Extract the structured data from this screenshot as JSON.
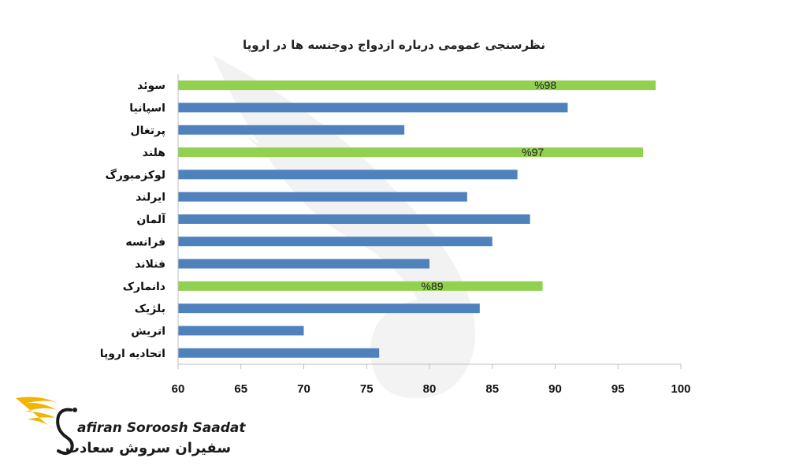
{
  "chart_data": {
    "type": "bar",
    "orientation": "horizontal",
    "title": "نظرسنجی عمومی درباره ازدواج دوجنسه ها در اروپا",
    "categories": [
      "سوئد",
      "اسپانیا",
      "پرتغال",
      "هلند",
      "لوکزمبورگ",
      "ایرلند",
      "آلمان",
      "فرانسه",
      "فنلاند",
      "دانمارک",
      "بلژیک",
      "اتریش",
      "اتحادیه اروپا"
    ],
    "values": [
      98,
      91,
      78,
      97,
      87,
      83,
      88,
      85,
      80,
      89,
      84,
      70,
      76
    ],
    "highlighted": [
      true,
      false,
      false,
      true,
      false,
      false,
      false,
      false,
      false,
      true,
      false,
      false,
      false
    ],
    "data_labels": [
      "%98",
      "",
      "",
      "%97",
      "",
      "",
      "",
      "",
      "",
      "%89",
      "",
      "",
      ""
    ],
    "xlim": [
      60,
      100
    ],
    "xticks": [
      "60",
      "65",
      "70",
      "75",
      "80",
      "85",
      "90",
      "95",
      "100"
    ],
    "xlabel": "",
    "ylabel": "",
    "grid": false,
    "colors": {
      "default": "#4f81bd",
      "highlight": "#92d050",
      "axis": "#bfbfbf"
    }
  },
  "logo": {
    "name_en": "afiran Soroosh Saadat",
    "name_fa": "سفیران سروش سعادت"
  }
}
